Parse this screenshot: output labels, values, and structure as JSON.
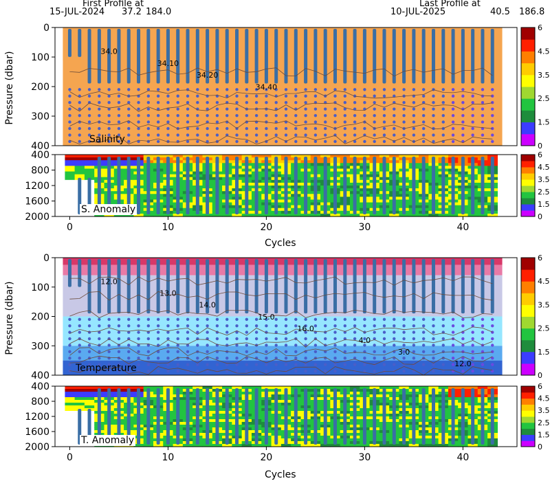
{
  "header": {
    "first_label": "First Profile at",
    "first_date": "15-JUL-2024",
    "first_lat": "37.2",
    "first_lon": "184.0",
    "last_label": "Last Profile at",
    "last_date": "10-JUL-2025",
    "last_lat": "40.5",
    "last_lon": "186.8"
  },
  "chart_data": [
    {
      "type": "heatmap",
      "title": "Salinity",
      "ylabel": "Pressure (dbar)",
      "ylim": [
        400,
        0
      ],
      "xlim": [
        -1.5,
        45.5
      ],
      "yticks": [
        0,
        100,
        200,
        300,
        400
      ],
      "contour_labels": [
        "34.0",
        "34.10",
        "34.20",
        "34.40"
      ],
      "colorbar_ticks": [
        "6",
        "4.5",
        "3.5",
        "2.5",
        "1.5",
        "0"
      ],
      "fill_color": "#f5a550"
    },
    {
      "type": "heatmap",
      "title": "S. Anomaly",
      "ylim": [
        2000,
        400
      ],
      "xlim": [
        -1.5,
        45.5
      ],
      "yticks": [
        400,
        800,
        1200,
        1600,
        2000
      ],
      "xticks": [
        0,
        10,
        20,
        30,
        40
      ],
      "xlabel": "Cycles",
      "colorbar_ticks": [
        "6",
        "4.5",
        "3.5",
        "2.5",
        "1.5",
        "0"
      ]
    },
    {
      "type": "heatmap",
      "title": "Temperature",
      "ylabel": "Pressure (dbar)",
      "ylim": [
        400,
        0
      ],
      "xlim": [
        -1.5,
        45.5
      ],
      "yticks": [
        0,
        100,
        200,
        300,
        400
      ],
      "contour_labels": [
        "12.0",
        "13.0",
        "14.0",
        "15.0",
        "16.0",
        "4.0",
        "3.0",
        "12.0"
      ],
      "colorbar_ticks": [
        "6",
        "4.5",
        "3.5",
        "2.5",
        "1.5",
        "0"
      ]
    },
    {
      "type": "heatmap",
      "title": "T. Anomaly",
      "ylim": [
        2000,
        400
      ],
      "xlim": [
        -1.5,
        45.5
      ],
      "yticks": [
        400,
        800,
        1200,
        1600,
        2000
      ],
      "xticks": [
        0,
        10,
        20,
        30,
        40
      ],
      "xlabel": "Cycles",
      "colorbar_ticks": [
        "6",
        "4.5",
        "3.5",
        "2.5",
        "1.5",
        "0"
      ]
    }
  ],
  "colors": {
    "scale": [
      "#cc00ff",
      "#3c3cff",
      "#1e8c3c",
      "#22c440",
      "#a0d830",
      "#ffff00",
      "#ffcc00",
      "#ff7f00",
      "#ff2000",
      "#a00000"
    ],
    "profile_bar": "#3a6ea5",
    "contour": "#6a4a3a"
  }
}
